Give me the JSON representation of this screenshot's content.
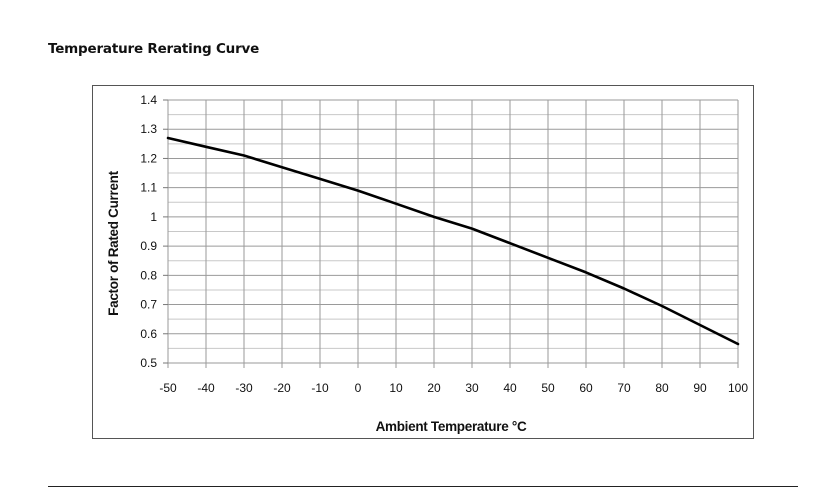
{
  "page": {
    "section_title": "Temperature Rerating Curve"
  },
  "chart_data": {
    "type": "line",
    "xlabel": "Ambient Temperature °C",
    "ylabel": "Factor of Rated Current",
    "xlim": [
      -50,
      100
    ],
    "ylim": [
      0.5,
      1.4
    ],
    "x_ticks": [
      -50,
      -40,
      -30,
      -20,
      -10,
      0,
      10,
      20,
      30,
      40,
      50,
      60,
      70,
      80,
      90,
      100
    ],
    "y_ticks": [
      "0.5",
      "0.6",
      "0.7",
      "0.8",
      "0.9",
      "1",
      "1.1",
      "1.2",
      "1.3",
      "1.4"
    ],
    "grid": true,
    "series": [
      {
        "color": "#000000",
        "x": [
          -50,
          -40,
          -30,
          -20,
          -10,
          0,
          10,
          20,
          30,
          40,
          50,
          60,
          70,
          80,
          90,
          100
        ],
        "y": [
          1.27,
          1.24,
          1.21,
          1.17,
          1.13,
          1.09,
          1.045,
          1.0,
          0.96,
          0.91,
          0.86,
          0.81,
          0.755,
          0.695,
          0.63,
          0.565
        ]
      }
    ]
  }
}
